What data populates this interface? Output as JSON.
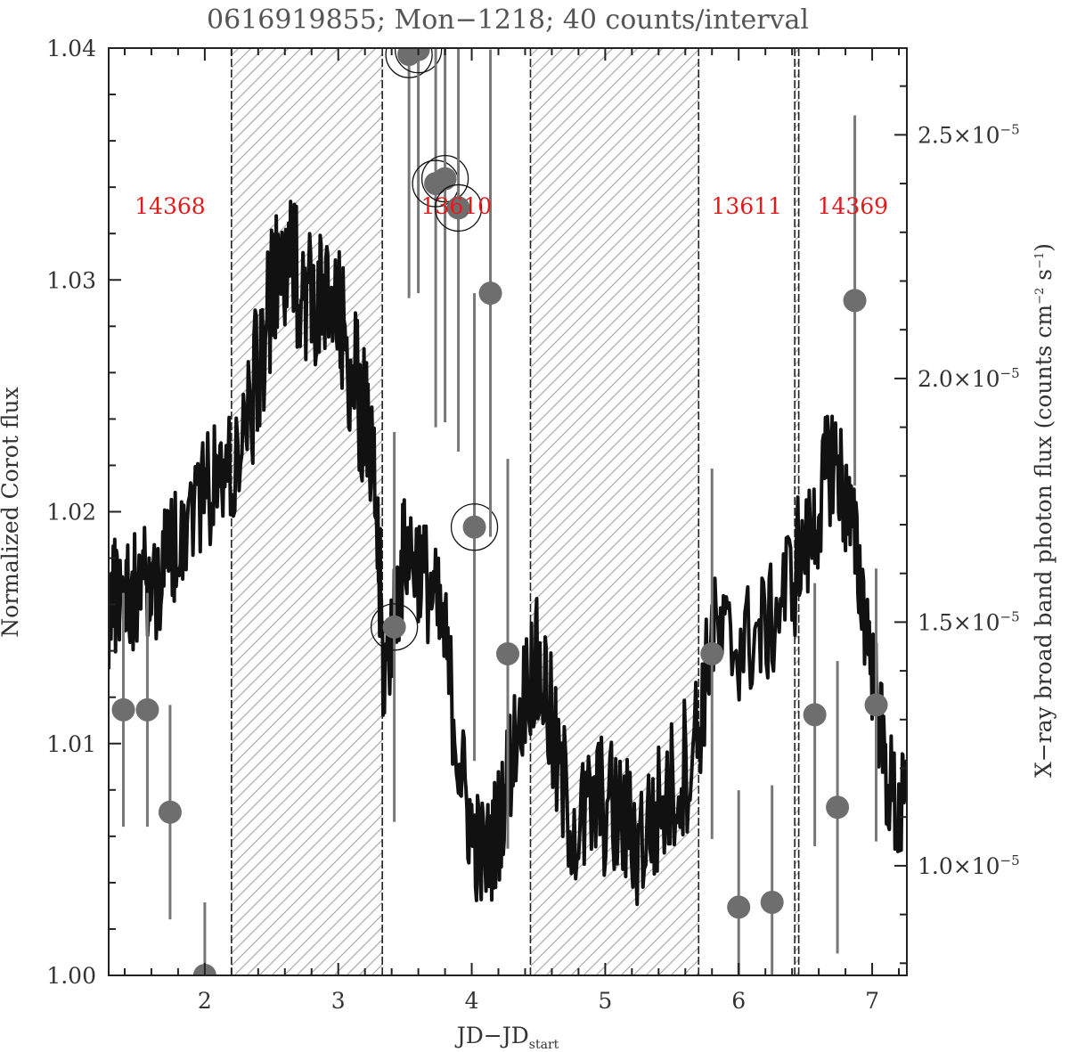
{
  "chart_data": {
    "type": "line",
    "title": "0616919855; Mon−1218; 40 counts/interval",
    "xlabel_main": "JD−JD",
    "xlabel_sub": "start",
    "ylabel": "Normalized Corot flux",
    "y2label_main": "X−ray broad band photon flux (counts cm",
    "y2label_exp1": "−2",
    "y2label_mid": " s",
    "y2label_exp2": "−1",
    "y2label_end": ")",
    "xlim": [
      1.28,
      7.26
    ],
    "ylim": [
      1.0,
      1.04
    ],
    "y2lim": [
      7.75e-06,
      2.678e-05
    ],
    "x_ticks": [
      "2",
      "3",
      "4",
      "5",
      "6",
      "7"
    ],
    "y_ticks": [
      "1.00",
      "1.01",
      "1.02",
      "1.03",
      "1.04"
    ],
    "y2_ticks": [
      {
        "mant": "1.0×10",
        "exp": "−5"
      },
      {
        "mant": "1.5×10",
        "exp": "−5"
      },
      {
        "mant": "2.0×10",
        "exp": "−5"
      },
      {
        "mant": "2.5×10",
        "exp": "−5"
      }
    ],
    "observations": [
      {
        "label": "14368",
        "x_start": 1.28,
        "x_end": 2.2,
        "hatched": false
      },
      {
        "label": "",
        "x_start": 2.2,
        "x_end": 3.33,
        "hatched": true
      },
      {
        "label": "13610",
        "x_start": 3.33,
        "x_end": 4.44,
        "hatched": false
      },
      {
        "label": "",
        "x_start": 4.44,
        "x_end": 5.7,
        "hatched": true
      },
      {
        "label": "13611",
        "x_start": 5.7,
        "x_end": 6.42,
        "hatched": false
      },
      {
        "label": "",
        "x_start": 6.42,
        "x_end": 6.45,
        "hatched": true
      },
      {
        "label": "14369",
        "x_start": 6.45,
        "x_end": 7.26,
        "hatched": false
      }
    ],
    "corot_anchor_points": [
      [
        1.28,
        1.0158
      ],
      [
        1.36,
        1.0168
      ],
      [
        1.44,
        1.0163
      ],
      [
        1.52,
        1.0172
      ],
      [
        1.6,
        1.0166
      ],
      [
        1.7,
        1.0178
      ],
      [
        1.8,
        1.019
      ],
      [
        1.92,
        1.0205
      ],
      [
        2.05,
        1.0212
      ],
      [
        2.15,
        1.0215
      ],
      [
        2.3,
        1.0232
      ],
      [
        2.42,
        1.0268
      ],
      [
        2.5,
        1.0292
      ],
      [
        2.6,
        1.0305
      ],
      [
        2.7,
        1.0302
      ],
      [
        2.8,
        1.0292
      ],
      [
        2.9,
        1.0288
      ],
      [
        3.0,
        1.0282
      ],
      [
        3.1,
        1.0262
      ],
      [
        3.2,
        1.0238
      ],
      [
        3.28,
        1.0205
      ],
      [
        3.34,
        1.0128
      ],
      [
        3.42,
        1.0155
      ],
      [
        3.5,
        1.0185
      ],
      [
        3.6,
        1.0178
      ],
      [
        3.7,
        1.0165
      ],
      [
        3.8,
        1.0145
      ],
      [
        3.9,
        1.0095
      ],
      [
        4.0,
        1.0062
      ],
      [
        4.1,
        1.0048
      ],
      [
        4.2,
        1.0065
      ],
      [
        4.3,
        1.0095
      ],
      [
        4.44,
        1.0135
      ],
      [
        4.55,
        1.0125
      ],
      [
        4.65,
        1.0085
      ],
      [
        4.8,
        1.0062
      ],
      [
        4.95,
        1.0075
      ],
      [
        5.1,
        1.0068
      ],
      [
        5.25,
        1.0058
      ],
      [
        5.4,
        1.007
      ],
      [
        5.55,
        1.0085
      ],
      [
        5.7,
        1.0105
      ],
      [
        5.8,
        1.0148
      ],
      [
        5.95,
        1.0142
      ],
      [
        6.1,
        1.0145
      ],
      [
        6.25,
        1.0152
      ],
      [
        6.4,
        1.0175
      ],
      [
        6.55,
        1.0188
      ],
      [
        6.65,
        1.0215
      ],
      [
        6.72,
        1.0225
      ],
      [
        6.8,
        1.0205
      ],
      [
        6.9,
        1.0175
      ],
      [
        7.0,
        1.0135
      ],
      [
        7.1,
        1.0088
      ],
      [
        7.2,
        1.0068
      ],
      [
        7.26,
        1.0075
      ]
    ],
    "xray_points": [
      {
        "x": 1.39,
        "y": 1.32e-05,
        "err": 2.4e-06,
        "circled": false
      },
      {
        "x": 1.57,
        "y": 1.32e-05,
        "err": 2.4e-06,
        "circled": false
      },
      {
        "x": 1.74,
        "y": 1.11e-05,
        "err": 2.2e-06,
        "circled": false
      },
      {
        "x": 2.0,
        "y": 7.75e-06,
        "err": 1.5e-06,
        "circled": false
      },
      {
        "x": 3.42,
        "y": 1.49e-05,
        "err": 4e-06,
        "circled": true
      },
      {
        "x": 3.53,
        "y": 2.665e-05,
        "err": 5e-06,
        "circled": true
      },
      {
        "x": 3.6,
        "y": 2.675e-05,
        "err": 5e-06,
        "circled": true
      },
      {
        "x": 3.73,
        "y": 2.4e-05,
        "err": 5e-06,
        "circled": true
      },
      {
        "x": 3.8,
        "y": 2.41e-05,
        "err": 5e-06,
        "circled": true
      },
      {
        "x": 3.9,
        "y": 2.35e-05,
        "err": 5e-06,
        "circled": true
      },
      {
        "x": 4.02,
        "y": 1.695e-05,
        "err": 4.8e-06,
        "circled": true
      },
      {
        "x": 4.14,
        "y": 2.175e-05,
        "err": 5e-06,
        "circled": false
      },
      {
        "x": 4.27,
        "y": 1.435e-05,
        "err": 4e-06,
        "circled": false
      },
      {
        "x": 5.8,
        "y": 1.435e-05,
        "err": 3.8e-06,
        "circled": false
      },
      {
        "x": 6.0,
        "y": 9.15e-06,
        "err": 2.4e-06,
        "circled": false
      },
      {
        "x": 6.25,
        "y": 9.25e-06,
        "err": 2.4e-06,
        "circled": false
      },
      {
        "x": 6.57,
        "y": 1.31e-05,
        "err": 2.7e-06,
        "circled": false
      },
      {
        "x": 6.74,
        "y": 1.12e-05,
        "err": 3e-06,
        "circled": false
      },
      {
        "x": 6.87,
        "y": 2.16e-05,
        "err": 3.8e-06,
        "circled": false
      },
      {
        "x": 7.03,
        "y": 1.33e-05,
        "err": 2.8e-06,
        "circled": false
      }
    ]
  }
}
